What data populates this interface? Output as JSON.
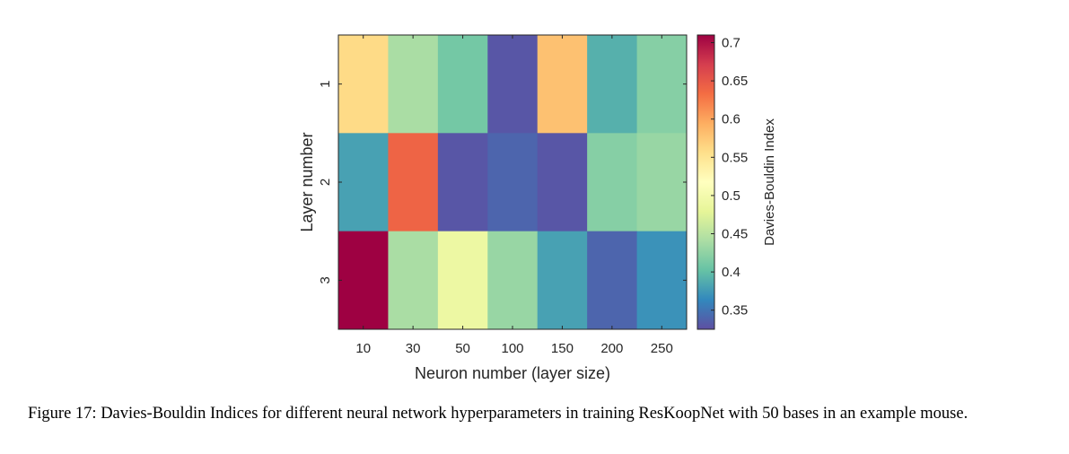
{
  "chart_data": {
    "type": "heatmap",
    "xlabel": "Neuron number (layer size)",
    "ylabel": "Layer number",
    "x_categories": [
      "10",
      "30",
      "50",
      "100",
      "150",
      "200",
      "250"
    ],
    "y_categories": [
      "1",
      "2",
      "3"
    ],
    "values": [
      [
        0.56,
        0.44,
        0.41,
        0.33,
        0.58,
        0.39,
        0.42
      ],
      [
        0.38,
        0.64,
        0.33,
        0.34,
        0.33,
        0.42,
        0.43
      ],
      [
        0.72,
        0.44,
        0.49,
        0.43,
        0.38,
        0.34,
        0.37
      ]
    ],
    "colorbar": {
      "label": "Davies-Bouldin Index",
      "range": [
        0.325,
        0.71
      ],
      "ticks": [
        "0.35",
        "0.4",
        "0.45",
        "0.5",
        "0.55",
        "0.6",
        "0.65",
        "0.7"
      ],
      "colormap": "Spectral (reversed)"
    },
    "grid": false
  },
  "caption": "Figure 17: Davies-Bouldin Indices for different neural network hyperparameters in training ResKoopNet with 50 bases in an example mouse."
}
